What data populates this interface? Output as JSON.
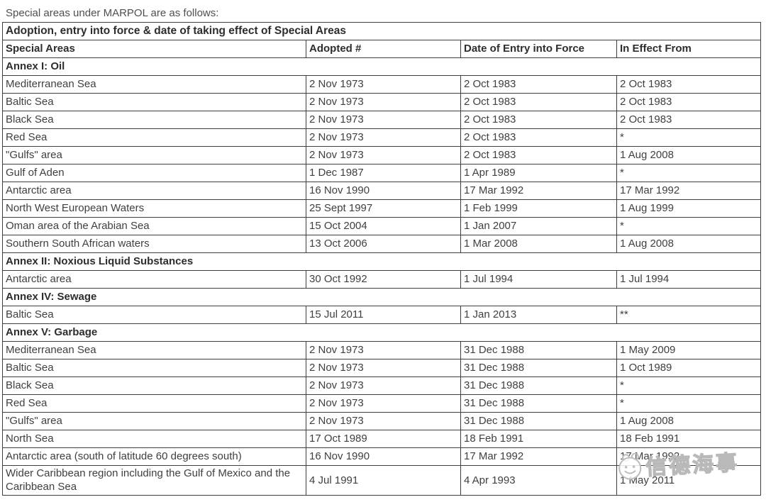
{
  "intro_text": "Special areas under MARPOL are as follows:",
  "table": {
    "title": "Adoption, entry into force & date of taking effect of Special Areas",
    "columns": [
      "Special Areas",
      "Adopted #",
      "Date of Entry into Force",
      "In Effect From"
    ],
    "sections": [
      {
        "header": "Annex I: Oil",
        "rows": [
          {
            "area": "Mediterranean Sea",
            "adopted": "2 Nov 1973",
            "entry_into_force": "2 Oct 1983",
            "in_effect_from": "2 Oct 1983"
          },
          {
            "area": "Baltic Sea",
            "adopted": "2 Nov 1973",
            "entry_into_force": "2 Oct 1983",
            "in_effect_from": "2 Oct 1983"
          },
          {
            "area": "Black Sea",
            "adopted": "2 Nov 1973",
            "entry_into_force": "2 Oct 1983",
            "in_effect_from": "2 Oct 1983"
          },
          {
            "area": "Red Sea",
            "adopted": "2 Nov 1973",
            "entry_into_force": "2 Oct 1983",
            "in_effect_from": "*"
          },
          {
            "area": "\"Gulfs\" area",
            "adopted": "2 Nov 1973",
            "entry_into_force": "2 Oct 1983",
            "in_effect_from": "1 Aug 2008"
          },
          {
            "area": "Gulf of Aden",
            "adopted": "1 Dec 1987",
            "entry_into_force": "1 Apr 1989",
            "in_effect_from": "*"
          },
          {
            "area": "Antarctic area",
            "adopted": "16 Nov 1990",
            "entry_into_force": "17 Mar 1992",
            "in_effect_from": "17 Mar 1992"
          },
          {
            "area": "North West European Waters",
            "adopted": "25 Sept 1997",
            "entry_into_force": "1 Feb 1999",
            "in_effect_from": "1 Aug 1999"
          },
          {
            "area": "Oman area of the Arabian Sea",
            "adopted": "15 Oct 2004",
            "entry_into_force": "1 Jan 2007",
            "in_effect_from": "*"
          },
          {
            "area": "Southern South African waters",
            "adopted": "13 Oct 2006",
            "entry_into_force": "1 Mar 2008",
            "in_effect_from": "1 Aug 2008"
          }
        ]
      },
      {
        "header": "Annex II: Noxious Liquid Substances",
        "rows": [
          {
            "area": "Antarctic area",
            "adopted": "30 Oct 1992",
            "entry_into_force": "1 Jul 1994",
            "in_effect_from": "1 Jul 1994"
          }
        ]
      },
      {
        "header": "Annex IV: Sewage",
        "rows": [
          {
            "area": "Baltic Sea",
            "adopted": "15 Jul 2011",
            "entry_into_force": "1 Jan 2013",
            "in_effect_from": "**"
          }
        ]
      },
      {
        "header": "Annex V: Garbage",
        "rows": [
          {
            "area": "Mediterranean Sea",
            "adopted": "2 Nov 1973",
            "entry_into_force": "31 Dec 1988",
            "in_effect_from": "1 May 2009"
          },
          {
            "area": "Baltic Sea",
            "adopted": "2 Nov 1973",
            "entry_into_force": "31 Dec 1988",
            "in_effect_from": "1 Oct 1989"
          },
          {
            "area": "Black Sea",
            "adopted": "2 Nov 1973",
            "entry_into_force": "31 Dec 1988",
            "in_effect_from": "*"
          },
          {
            "area": "Red Sea",
            "adopted": "2 Nov 1973",
            "entry_into_force": "31 Dec 1988",
            "in_effect_from": "*"
          },
          {
            "area": "\"Gulfs\" area",
            "adopted": "2 Nov 1973",
            "entry_into_force": "31 Dec 1988",
            "in_effect_from": "1 Aug 2008"
          },
          {
            "area": "North Sea",
            "adopted": "17 Oct 1989",
            "entry_into_force": "18 Feb 1991",
            "in_effect_from": "18 Feb 1991"
          },
          {
            "area": "Antarctic area (south of latitude 60 degrees south)",
            "adopted": "16 Nov 1990",
            "entry_into_force": "17 Mar 1992",
            "in_effect_from": "17 Mar 1992"
          },
          {
            "area": "Wider Caribbean region including the Gulf of Mexico and the Caribbean Sea",
            "adopted": "4 Jul 1991",
            "entry_into_force": "4 Apr 1993",
            "in_effect_from": "1 May 2011"
          }
        ]
      }
    ]
  },
  "watermark": {
    "text": "信德海事",
    "logo_icon": "cartoon-face-logo"
  },
  "colors": {
    "page_bg": "#ffffff",
    "border_color": "#3e3e3e",
    "body_text": "#3f3f3f",
    "heading_text": "#2d2d2d",
    "intro_text": "#4f4f4f",
    "watermark_color": "#b9b9b9"
  }
}
